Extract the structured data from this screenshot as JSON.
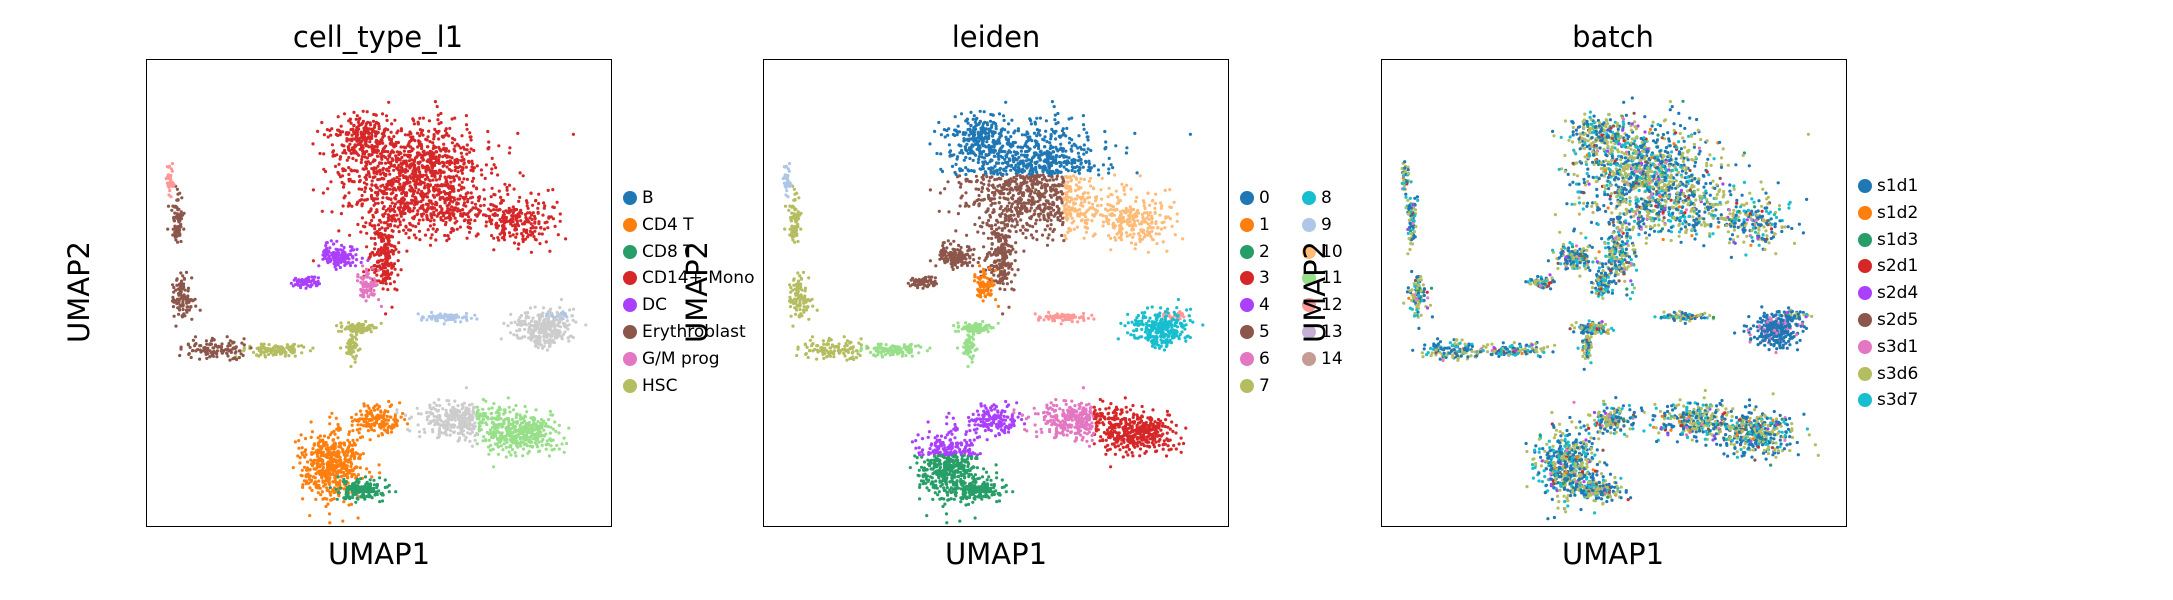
{
  "chart_data": [
    {
      "type": "scatter",
      "title": "cell_type_l1",
      "xlabel": "UMAP1",
      "ylabel": "UMAP2",
      "grid": false,
      "legend_placement": "right",
      "categories": [
        "B",
        "CD4 T",
        "CD8 T",
        "CD14+ Mono",
        "DC",
        "Erythroblast",
        "G/M prog",
        "HSC"
      ],
      "colors": [
        "#1f77b4",
        "#ff7f0e",
        "#279e68",
        "#d62728",
        "#aa40fc",
        "#8c564b",
        "#e377c2",
        "#b5bd61"
      ]
    },
    {
      "type": "scatter",
      "title": "leiden",
      "xlabel": "UMAP1",
      "ylabel": "UMAP2",
      "grid": false,
      "legend_placement": "right",
      "categories": [
        "0",
        "1",
        "2",
        "3",
        "4",
        "5",
        "6",
        "7",
        "8",
        "9",
        "10",
        "11",
        "12",
        "13",
        "14"
      ],
      "colors": [
        "#1f77b4",
        "#ff7f0e",
        "#279e68",
        "#d62728",
        "#aa40fc",
        "#8c564b",
        "#e377c2",
        "#b5bd61",
        "#17becf",
        "#aec7e8",
        "#ffbb78",
        "#98df8a",
        "#ff9896",
        "#c5b0d5",
        "#c49c94"
      ]
    },
    {
      "type": "scatter",
      "title": "batch",
      "xlabel": "UMAP1",
      "ylabel": "UMAP2",
      "grid": false,
      "legend_placement": "right",
      "categories": [
        "s1d1",
        "s1d2",
        "s1d3",
        "s2d1",
        "s2d4",
        "s2d5",
        "s3d1",
        "s3d6",
        "s3d7"
      ],
      "colors": [
        "#1f77b4",
        "#ff7f0e",
        "#279e68",
        "#d62728",
        "#aa40fc",
        "#8c564b",
        "#e377c2",
        "#b5bd61",
        "#17becf"
      ]
    }
  ]
}
